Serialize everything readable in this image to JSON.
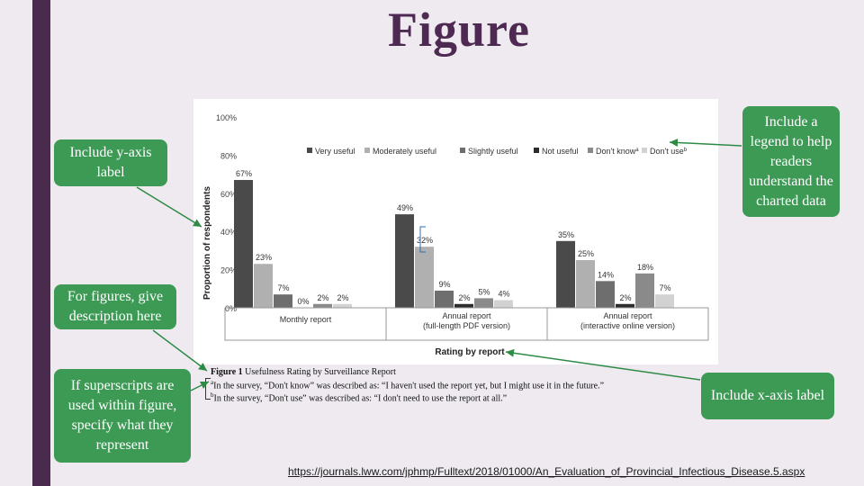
{
  "slide": {
    "title": "Figure"
  },
  "callouts": {
    "y_axis": "Include y-axis label",
    "legend": "Include a legend to help readers understand the charted data",
    "description": "For figures, give description here",
    "superscripts": "If superscripts are used within figure, specify what they represent",
    "x_axis": "Include x-axis label"
  },
  "colors": {
    "accent_bar": "#4a2a4d",
    "title": "#4e2a52",
    "callout_bg": "#3d9a55",
    "arrow": "#2e8b46"
  },
  "caption": {
    "title_bold": "Figure 1",
    "title_rest": " Usefulness Rating by Surveillance Report",
    "note_a_mark": "a",
    "note_a": "In the survey, “Don't know” was described as: “I haven't used the report yet, but I might use it in the future.”",
    "note_b_mark": "b",
    "note_b": "In the survey, “Don't use” was described as: “I don't need to use the report at all.”"
  },
  "source_url": "https://journals.lww.com/jphmp/Fulltext/2018/01000/An_Evaluation_of_Provincial_Infectious_Disease.5.aspx",
  "chart_data": {
    "type": "bar",
    "ylabel": "Proportion of respondents",
    "xlabel": "Rating by report",
    "ylim": [
      0,
      100
    ],
    "yticks": [
      "0%",
      "20%",
      "40%",
      "60%",
      "80%",
      "100%"
    ],
    "legend_position": "top",
    "categories": [
      "Monthly report",
      "Annual report (full-length PDF version)",
      "Annual report (interactive online version)"
    ],
    "category_lines": [
      [
        "Monthly report"
      ],
      [
        "Annual report",
        "(full-length PDF version)"
      ],
      [
        "Annual report",
        "(interactive online version)"
      ]
    ],
    "series": [
      {
        "name": "Very useful",
        "color": "#4a4a4a",
        "values": [
          67,
          49,
          35
        ],
        "labels": [
          "67%",
          "49%",
          "35%"
        ]
      },
      {
        "name": "Moderately useful",
        "color": "#b0b0b0",
        "values": [
          23,
          32,
          25
        ],
        "labels": [
          "23%",
          "32%",
          "25%"
        ]
      },
      {
        "name": "Slightly useful",
        "color": "#6e6e6e",
        "values": [
          7,
          9,
          14
        ],
        "labels": [
          "7%",
          "9%",
          "14%"
        ]
      },
      {
        "name": "Not useful",
        "color": "#2c2c2c",
        "values": [
          0,
          2,
          2
        ],
        "labels": [
          "0%",
          "2%",
          "2%"
        ]
      },
      {
        "name": "Don't know",
        "name_sup": "a",
        "color": "#8a8a8a",
        "values": [
          2,
          5,
          18
        ],
        "labels": [
          "2%",
          "5%",
          "18%"
        ]
      },
      {
        "name": "Don't use",
        "name_sup": "b",
        "color": "#d2d2d2",
        "values": [
          2,
          4,
          7
        ],
        "labels": [
          "2%",
          "4%",
          "7%"
        ]
      }
    ]
  }
}
